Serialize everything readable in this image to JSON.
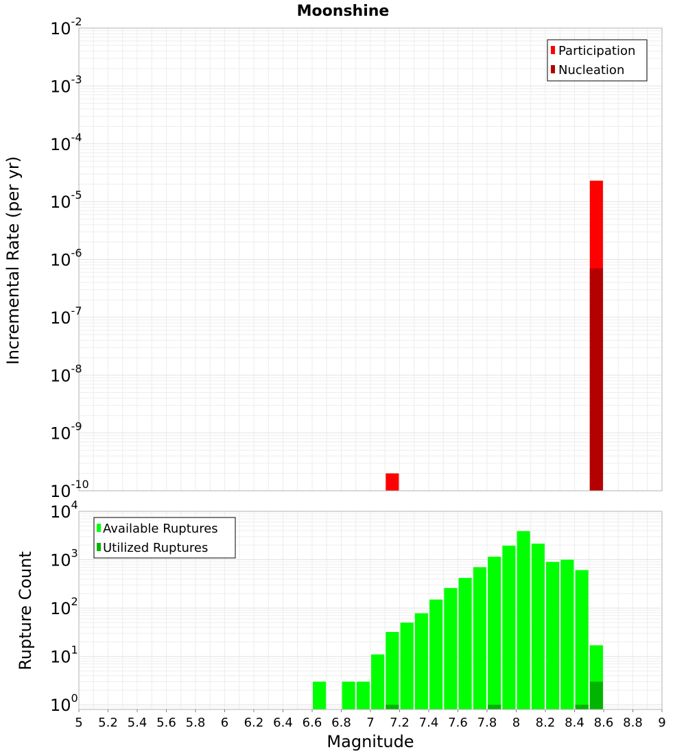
{
  "chart_data": [
    {
      "type": "bar",
      "title": "Moonshine",
      "xlabel": "",
      "ylabel": "Incremental Rate (per yr)",
      "xlim": [
        5,
        9
      ],
      "ylim": [
        1e-10,
        0.01
      ],
      "yscale": "log",
      "grid": true,
      "legend_position": "top-right",
      "bar_width": 0.09,
      "y_ticks": [
        {
          "base": "10",
          "exp": "-2",
          "value": 0.01
        },
        {
          "base": "10",
          "exp": "-3",
          "value": 0.001
        },
        {
          "base": "10",
          "exp": "-4",
          "value": 0.0001
        },
        {
          "base": "10",
          "exp": "-5",
          "value": 1e-05
        },
        {
          "base": "10",
          "exp": "-6",
          "value": 1e-06
        },
        {
          "base": "10",
          "exp": "-7",
          "value": 1e-07
        },
        {
          "base": "10",
          "exp": "-8",
          "value": 1e-08
        },
        {
          "base": "10",
          "exp": "-9",
          "value": 1e-09
        },
        {
          "base": "10",
          "exp": "-10",
          "value": 1e-10
        }
      ],
      "series": [
        {
          "name": "Participation",
          "color": "#ff0000",
          "x": [
            7.15,
            8.55
          ],
          "values": [
            2e-10,
            2.3e-05
          ]
        },
        {
          "name": "Nucleation",
          "color": "#b40000",
          "x": [
            8.55
          ],
          "values": [
            7e-07
          ]
        }
      ]
    },
    {
      "type": "bar",
      "title": "",
      "xlabel": "Magnitude",
      "ylabel": "Rupture Count",
      "xlim": [
        5,
        9
      ],
      "ylim": [
        0.8,
        10000
      ],
      "yscale": "log",
      "grid": true,
      "legend_position": "top-left",
      "bar_width": 0.09,
      "x_tick_labels": [
        "5",
        "5.2",
        "5.4",
        "5.6",
        "5.8",
        "6",
        "6.2",
        "6.4",
        "6.6",
        "6.8",
        "7",
        "7.2",
        "7.4",
        "7.6",
        "7.8",
        "8",
        "8.2",
        "8.4",
        "8.6",
        "8.8",
        "9"
      ],
      "x_tick_values": [
        5,
        5.2,
        5.4,
        5.6,
        5.8,
        6,
        6.2,
        6.4,
        6.6,
        6.8,
        7,
        7.2,
        7.4,
        7.6,
        7.8,
        8,
        8.2,
        8.4,
        8.6,
        8.8,
        9
      ],
      "y_ticks": [
        {
          "base": "10",
          "exp": "4",
          "value": 10000
        },
        {
          "base": "10",
          "exp": "3",
          "value": 1000
        },
        {
          "base": "10",
          "exp": "2",
          "value": 100
        },
        {
          "base": "10",
          "exp": "1",
          "value": 10
        },
        {
          "base": "10",
          "exp": "0",
          "value": 1
        }
      ],
      "series": [
        {
          "name": "Available Ruptures",
          "color": "#00ff00",
          "x": [
            6.65,
            6.85,
            6.95,
            7.05,
            7.15,
            7.25,
            7.35,
            7.45,
            7.55,
            7.65,
            7.75,
            7.85,
            7.95,
            8.05,
            8.15,
            8.25,
            8.35,
            8.45,
            8.55
          ],
          "values": [
            3,
            3,
            3,
            11,
            32,
            50,
            78,
            150,
            260,
            420,
            700,
            1150,
            1950,
            3900,
            2150,
            900,
            1000,
            610,
            17
          ]
        },
        {
          "name": "Utilized Ruptures",
          "color": "#00b400",
          "x": [
            7.15,
            7.85,
            8.45,
            8.55
          ],
          "values": [
            1,
            1,
            1,
            3
          ]
        }
      ]
    }
  ]
}
